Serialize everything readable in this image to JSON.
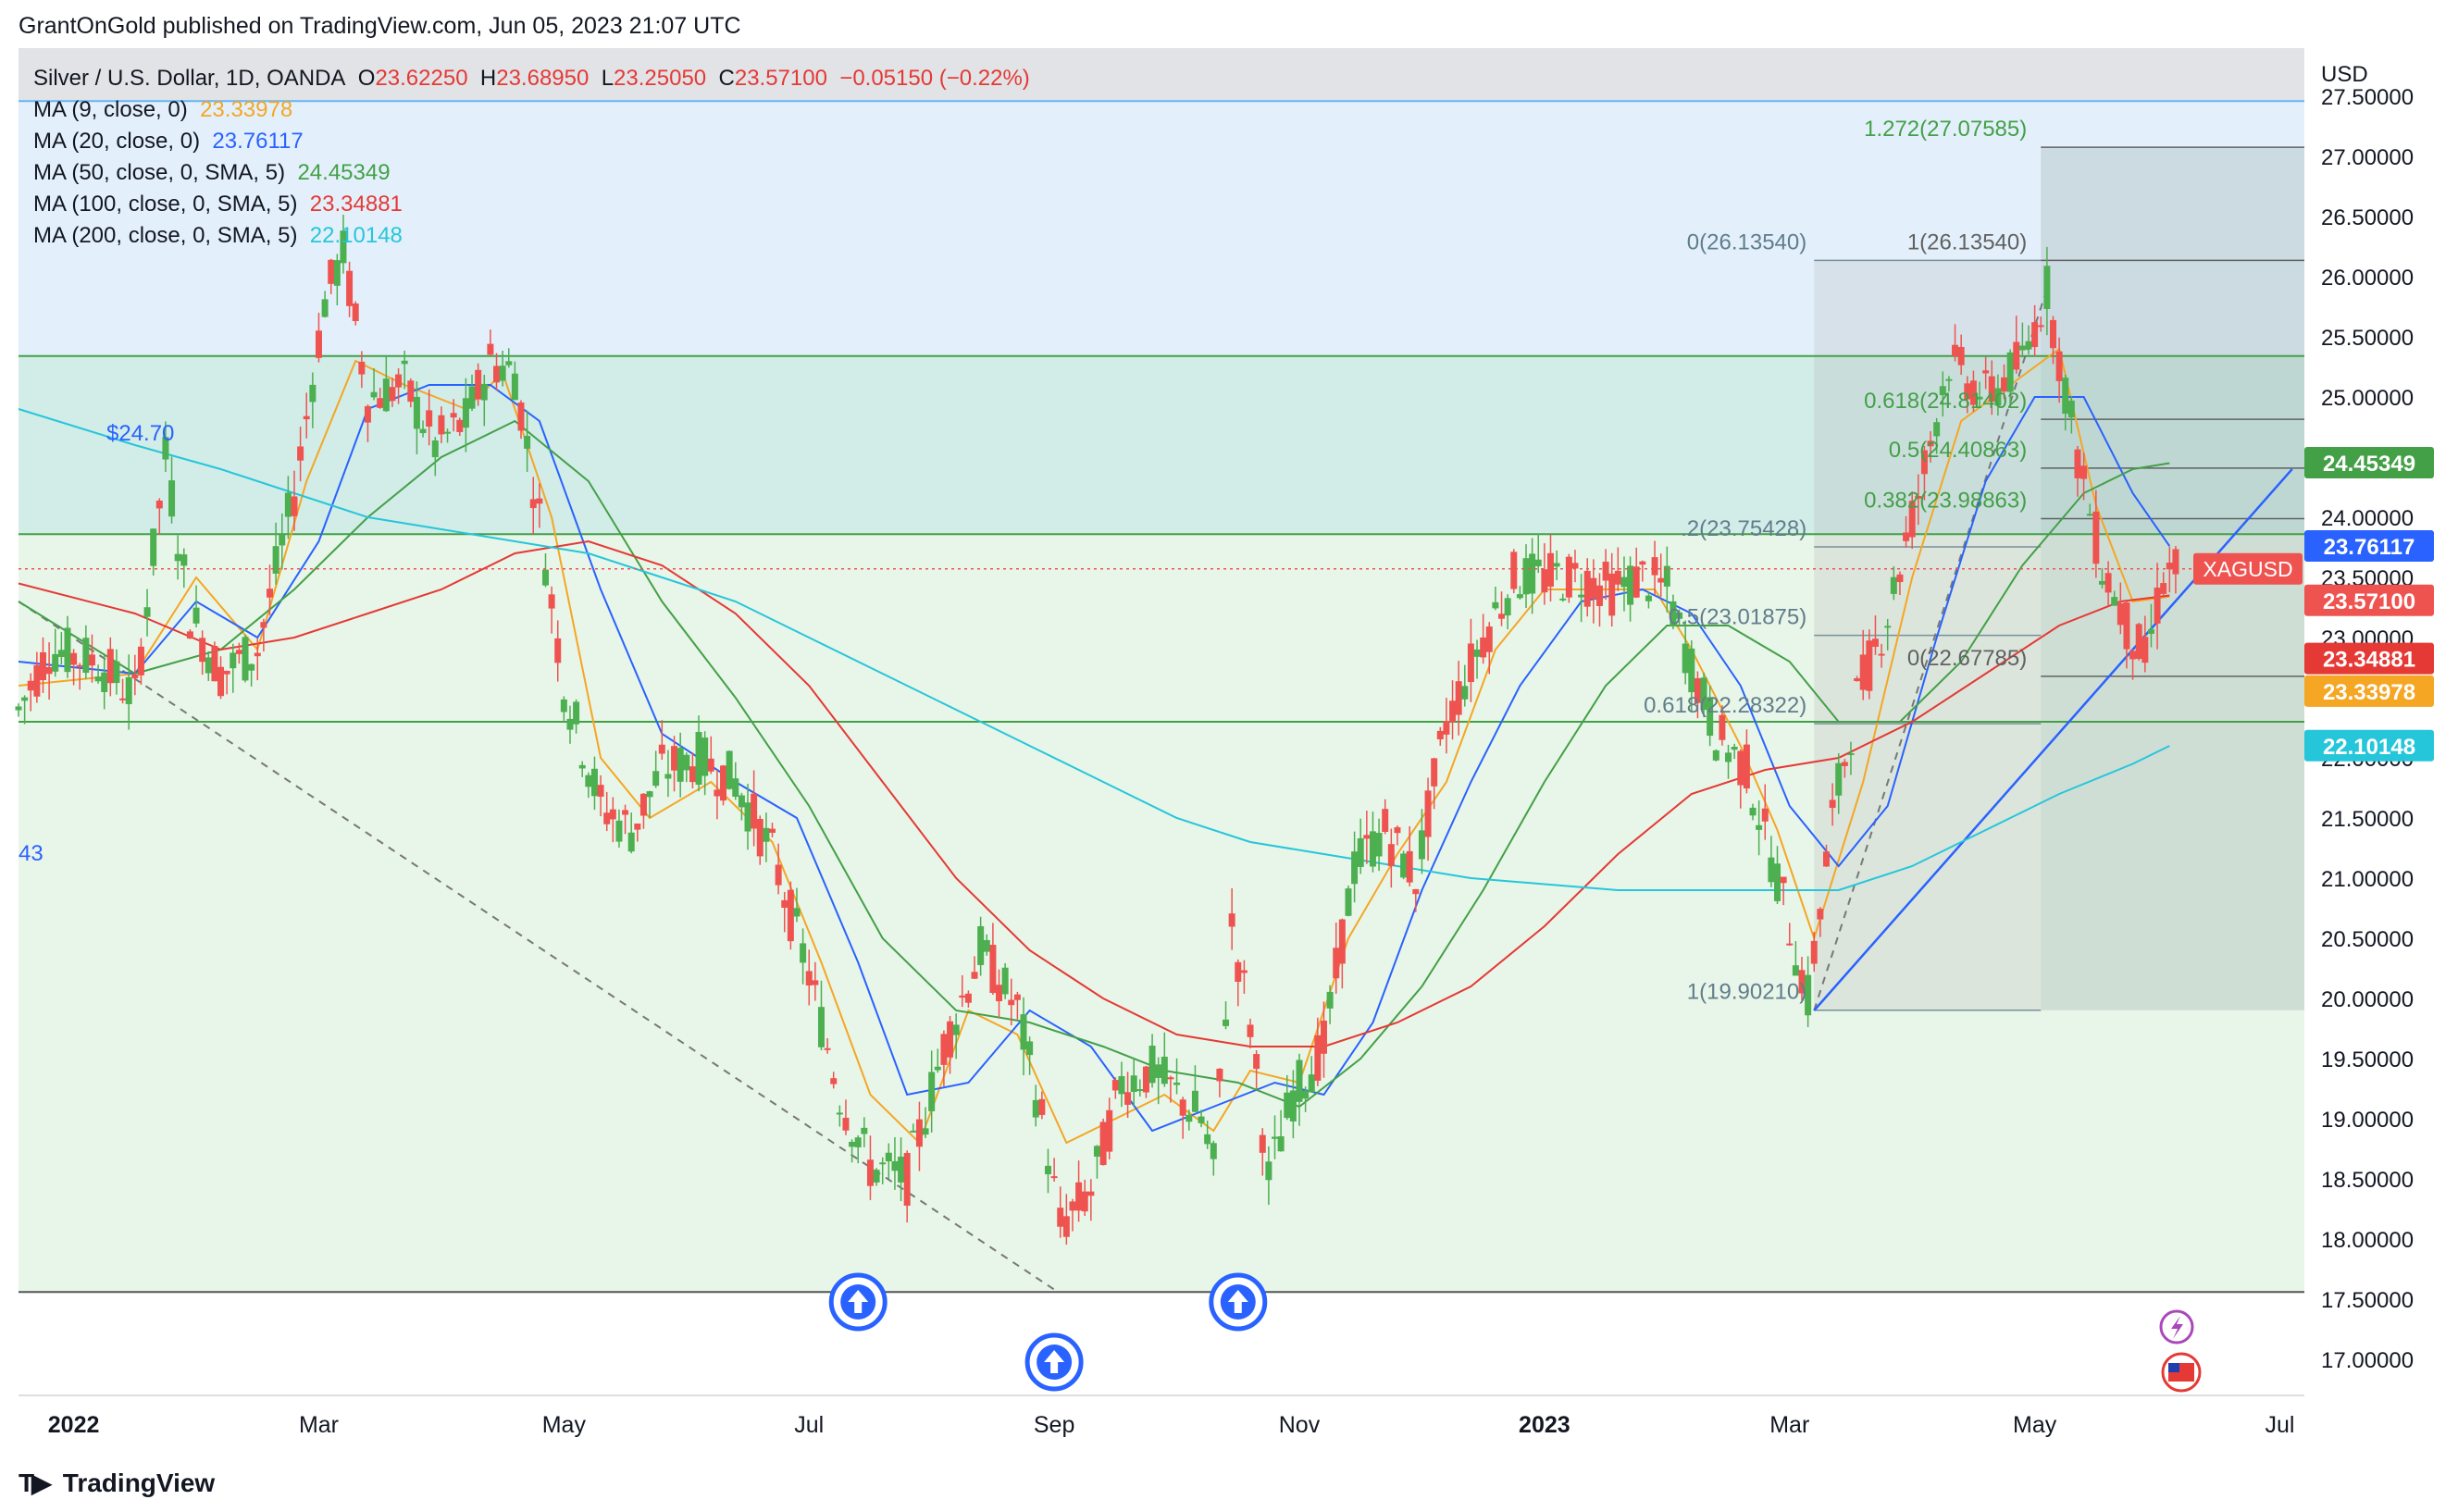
{
  "header": {
    "publisher_line": "GrantOnGold published on TradingView.com, Jun 05, 2023 21:07 UTC"
  },
  "legend": {
    "symbol": "Silver / U.S. Dollar, 1D, OANDA",
    "ohlc": {
      "o_label": "O",
      "o": "23.62250",
      "h_label": "H",
      "h": "23.68950",
      "l_label": "L",
      "l": "23.25050",
      "c_label": "C",
      "c": "23.57100",
      "change": "−0.05150 (−0.22%)"
    },
    "ma": [
      {
        "label": "MA (9, close, 0)",
        "value": "23.33978",
        "color": "#f5a623"
      },
      {
        "label": "MA (20, close, 0)",
        "value": "23.76117",
        "color": "#2962ff"
      },
      {
        "label": "MA (50, close, 0, SMA, 5)",
        "value": "24.45349",
        "color": "#43a047"
      },
      {
        "label": "MA (100, close, 0, SMA, 5)",
        "value": "23.34881",
        "color": "#e53935"
      },
      {
        "label": "MA (200, close, 0, SMA, 5)",
        "value": "22.10148",
        "color": "#26c6da"
      }
    ]
  },
  "footer": {
    "brand": "TradingView"
  },
  "colors": {
    "up": "#26a69a",
    "down": "#ef5350",
    "candle_up": "#4caf50",
    "bg_blue": "#e3f0fb",
    "bg_green": "#e8f5e9",
    "bg_teal": "#d2ece8",
    "bg_grey": "#e1e3e6",
    "grid_text": "#131722"
  },
  "chart_data": {
    "type": "line",
    "title": "Silver / U.S. Dollar, 1D, OANDA",
    "currency_label": "USD",
    "y_ticks": [
      "27.50000",
      "27.00000",
      "26.50000",
      "26.00000",
      "25.50000",
      "25.00000",
      "24.50000",
      "24.00000",
      "23.50000",
      "23.00000",
      "22.50000",
      "22.00000",
      "21.50000",
      "21.00000",
      "20.50000",
      "20.00000",
      "19.50000",
      "19.00000",
      "18.50000",
      "18.00000",
      "17.50000",
      "17.00000"
    ],
    "ylim": [
      16.7,
      27.9
    ],
    "x_ticks": [
      {
        "label": "2022",
        "t": 0.0,
        "bold": true
      },
      {
        "label": "Mar",
        "t": 2.0
      },
      {
        "label": "May",
        "t": 4.0
      },
      {
        "label": "Jul",
        "t": 6.0
      },
      {
        "label": "Sep",
        "t": 8.0
      },
      {
        "label": "Nov",
        "t": 10.0
      },
      {
        "label": "2023",
        "t": 12.0,
        "bold": true
      },
      {
        "label": "Mar",
        "t": 14.0
      },
      {
        "label": "May",
        "t": 16.0
      },
      {
        "label": "Jul",
        "t": 18.0
      }
    ],
    "xlim": [
      -0.45,
      18.2
    ],
    "price_path": [
      [
        -0.45,
        22.4
      ],
      [
        -0.2,
        22.9
      ],
      [
        0.2,
        22.8
      ],
      [
        0.5,
        22.5
      ],
      [
        0.75,
        24.5
      ],
      [
        0.95,
        23.2
      ],
      [
        1.2,
        22.7
      ],
      [
        1.5,
        22.9
      ],
      [
        1.8,
        24.2
      ],
      [
        2.05,
        25.8
      ],
      [
        2.2,
        26.2
      ],
      [
        2.4,
        25.0
      ],
      [
        2.7,
        25.1
      ],
      [
        2.95,
        24.6
      ],
      [
        3.2,
        24.8
      ],
      [
        3.4,
        25.3
      ],
      [
        3.6,
        25.2
      ],
      [
        3.8,
        24.0
      ],
      [
        4.0,
        22.6
      ],
      [
        4.3,
        21.6
      ],
      [
        4.55,
        21.4
      ],
      [
        4.8,
        21.9
      ],
      [
        5.1,
        22.0
      ],
      [
        5.4,
        21.8
      ],
      [
        5.7,
        21.2
      ],
      [
        6.0,
        20.2
      ],
      [
        6.25,
        19.2
      ],
      [
        6.5,
        18.6
      ],
      [
        6.8,
        18.5
      ],
      [
        7.1,
        19.6
      ],
      [
        7.4,
        20.4
      ],
      [
        7.7,
        19.9
      ],
      [
        7.9,
        19.0
      ],
      [
        8.05,
        18.1
      ],
      [
        8.3,
        18.4
      ],
      [
        8.55,
        19.3
      ],
      [
        8.8,
        19.4
      ],
      [
        9.0,
        19.2
      ],
      [
        9.2,
        19.0
      ],
      [
        9.3,
        18.6
      ],
      [
        9.45,
        20.6
      ],
      [
        9.6,
        19.8
      ],
      [
        9.75,
        18.5
      ],
      [
        9.95,
        19.2
      ],
      [
        10.2,
        19.6
      ],
      [
        10.45,
        21.1
      ],
      [
        10.7,
        21.4
      ],
      [
        10.95,
        21.0
      ],
      [
        11.2,
        22.3
      ],
      [
        11.5,
        23.0
      ],
      [
        11.75,
        23.5
      ],
      [
        12.0,
        23.5
      ],
      [
        12.3,
        23.5
      ],
      [
        12.55,
        23.4
      ],
      [
        12.8,
        23.5
      ],
      [
        13.0,
        23.4
      ],
      [
        13.15,
        22.9
      ],
      [
        13.4,
        22.2
      ],
      [
        13.65,
        21.9
      ],
      [
        13.9,
        21.0
      ],
      [
        14.15,
        20.0
      ],
      [
        14.35,
        21.5
      ],
      [
        14.55,
        22.5
      ],
      [
        14.8,
        23.2
      ],
      [
        15.05,
        24.2
      ],
      [
        15.3,
        25.3
      ],
      [
        15.6,
        25.0
      ],
      [
        15.9,
        25.3
      ],
      [
        16.1,
        25.9
      ],
      [
        16.35,
        24.5
      ],
      [
        16.55,
        23.6
      ],
      [
        16.75,
        23.1
      ],
      [
        16.9,
        22.8
      ],
      [
        17.05,
        23.5
      ],
      [
        17.2,
        23.6
      ]
    ],
    "ma_paths": [
      {
        "name": "MA 9",
        "color": "#f5a623",
        "points": [
          [
            -0.45,
            22.6
          ],
          [
            0.5,
            22.7
          ],
          [
            1.0,
            23.5
          ],
          [
            1.5,
            22.9
          ],
          [
            1.9,
            24.3
          ],
          [
            2.3,
            25.3
          ],
          [
            2.7,
            25.1
          ],
          [
            3.2,
            24.9
          ],
          [
            3.5,
            25.2
          ],
          [
            3.9,
            24.0
          ],
          [
            4.3,
            22.0
          ],
          [
            4.7,
            21.5
          ],
          [
            5.2,
            21.8
          ],
          [
            5.7,
            21.3
          ],
          [
            6.1,
            20.3
          ],
          [
            6.5,
            19.2
          ],
          [
            6.9,
            18.8
          ],
          [
            7.3,
            19.9
          ],
          [
            7.7,
            19.7
          ],
          [
            8.1,
            18.8
          ],
          [
            8.5,
            19.0
          ],
          [
            8.9,
            19.2
          ],
          [
            9.3,
            18.9
          ],
          [
            9.6,
            19.4
          ],
          [
            10.0,
            19.3
          ],
          [
            10.4,
            20.5
          ],
          [
            10.8,
            21.2
          ],
          [
            11.2,
            21.8
          ],
          [
            11.6,
            22.9
          ],
          [
            12.0,
            23.4
          ],
          [
            12.5,
            23.4
          ],
          [
            12.9,
            23.4
          ],
          [
            13.2,
            22.9
          ],
          [
            13.6,
            22.1
          ],
          [
            13.9,
            21.4
          ],
          [
            14.2,
            20.5
          ],
          [
            14.6,
            21.8
          ],
          [
            15.0,
            23.5
          ],
          [
            15.4,
            24.8
          ],
          [
            15.8,
            25.1
          ],
          [
            16.2,
            25.4
          ],
          [
            16.5,
            24.1
          ],
          [
            16.8,
            23.3
          ],
          [
            17.1,
            23.34
          ]
        ]
      },
      {
        "name": "MA 20",
        "color": "#2962ff",
        "points": [
          [
            -0.45,
            22.8
          ],
          [
            0.5,
            22.7
          ],
          [
            1.0,
            23.3
          ],
          [
            1.5,
            23.0
          ],
          [
            2.0,
            23.8
          ],
          [
            2.4,
            24.9
          ],
          [
            2.9,
            25.1
          ],
          [
            3.4,
            25.1
          ],
          [
            3.8,
            24.8
          ],
          [
            4.3,
            23.4
          ],
          [
            4.8,
            22.2
          ],
          [
            5.4,
            21.8
          ],
          [
            5.9,
            21.5
          ],
          [
            6.4,
            20.3
          ],
          [
            6.8,
            19.2
          ],
          [
            7.3,
            19.3
          ],
          [
            7.8,
            19.9
          ],
          [
            8.3,
            19.6
          ],
          [
            8.8,
            18.9
          ],
          [
            9.3,
            19.1
          ],
          [
            9.8,
            19.3
          ],
          [
            10.2,
            19.2
          ],
          [
            10.6,
            19.8
          ],
          [
            11.0,
            20.9
          ],
          [
            11.4,
            21.8
          ],
          [
            11.8,
            22.6
          ],
          [
            12.3,
            23.3
          ],
          [
            12.8,
            23.4
          ],
          [
            13.2,
            23.2
          ],
          [
            13.6,
            22.6
          ],
          [
            14.0,
            21.6
          ],
          [
            14.4,
            21.1
          ],
          [
            14.8,
            21.6
          ],
          [
            15.2,
            23.0
          ],
          [
            15.6,
            24.3
          ],
          [
            16.0,
            25.0
          ],
          [
            16.4,
            25.0
          ],
          [
            16.8,
            24.2
          ],
          [
            17.1,
            23.76
          ]
        ]
      },
      {
        "name": "MA 50",
        "color": "#43a047",
        "points": [
          [
            -0.45,
            23.3
          ],
          [
            0.5,
            22.7
          ],
          [
            1.2,
            22.9
          ],
          [
            1.8,
            23.4
          ],
          [
            2.4,
            24.0
          ],
          [
            3.0,
            24.5
          ],
          [
            3.6,
            24.8
          ],
          [
            4.2,
            24.3
          ],
          [
            4.8,
            23.3
          ],
          [
            5.4,
            22.5
          ],
          [
            6.0,
            21.6
          ],
          [
            6.6,
            20.5
          ],
          [
            7.2,
            19.9
          ],
          [
            7.8,
            19.8
          ],
          [
            8.4,
            19.6
          ],
          [
            8.9,
            19.4
          ],
          [
            9.5,
            19.3
          ],
          [
            10.0,
            19.1
          ],
          [
            10.5,
            19.5
          ],
          [
            11.0,
            20.1
          ],
          [
            11.5,
            20.9
          ],
          [
            12.0,
            21.8
          ],
          [
            12.5,
            22.6
          ],
          [
            13.0,
            23.1
          ],
          [
            13.5,
            23.1
          ],
          [
            14.0,
            22.8
          ],
          [
            14.4,
            22.3
          ],
          [
            14.9,
            22.3
          ],
          [
            15.4,
            22.8
          ],
          [
            15.9,
            23.6
          ],
          [
            16.4,
            24.2
          ],
          [
            16.8,
            24.4
          ],
          [
            17.1,
            24.45
          ]
        ]
      },
      {
        "name": "MA 100",
        "color": "#e53935",
        "points": [
          [
            -0.45,
            23.45
          ],
          [
            0.5,
            23.2
          ],
          [
            1.2,
            22.9
          ],
          [
            1.8,
            23.0
          ],
          [
            2.4,
            23.2
          ],
          [
            3.0,
            23.4
          ],
          [
            3.6,
            23.7
          ],
          [
            4.2,
            23.8
          ],
          [
            4.8,
            23.6
          ],
          [
            5.4,
            23.2
          ],
          [
            6.0,
            22.6
          ],
          [
            6.6,
            21.8
          ],
          [
            7.2,
            21.0
          ],
          [
            7.8,
            20.4
          ],
          [
            8.4,
            20.0
          ],
          [
            9.0,
            19.7
          ],
          [
            9.6,
            19.6
          ],
          [
            10.2,
            19.6
          ],
          [
            10.8,
            19.8
          ],
          [
            11.4,
            20.1
          ],
          [
            12.0,
            20.6
          ],
          [
            12.6,
            21.2
          ],
          [
            13.2,
            21.7
          ],
          [
            13.8,
            21.9
          ],
          [
            14.4,
            22.0
          ],
          [
            15.0,
            22.3
          ],
          [
            15.6,
            22.7
          ],
          [
            16.2,
            23.1
          ],
          [
            16.7,
            23.3
          ],
          [
            17.1,
            23.35
          ]
        ]
      },
      {
        "name": "MA 200",
        "color": "#26c6da",
        "points": [
          [
            -0.45,
            24.9
          ],
          [
            0.5,
            24.6
          ],
          [
            1.2,
            24.4
          ],
          [
            1.8,
            24.2
          ],
          [
            2.4,
            24.0
          ],
          [
            3.0,
            23.9
          ],
          [
            3.6,
            23.8
          ],
          [
            4.2,
            23.7
          ],
          [
            4.8,
            23.5
          ],
          [
            5.4,
            23.3
          ],
          [
            6.0,
            23.0
          ],
          [
            6.6,
            22.7
          ],
          [
            7.2,
            22.4
          ],
          [
            7.8,
            22.1
          ],
          [
            8.4,
            21.8
          ],
          [
            9.0,
            21.5
          ],
          [
            9.6,
            21.3
          ],
          [
            10.2,
            21.2
          ],
          [
            10.8,
            21.1
          ],
          [
            11.4,
            21.0
          ],
          [
            12.0,
            20.95
          ],
          [
            12.6,
            20.9
          ],
          [
            13.2,
            20.9
          ],
          [
            13.8,
            20.9
          ],
          [
            14.4,
            20.9
          ],
          [
            15.0,
            21.1
          ],
          [
            15.6,
            21.4
          ],
          [
            16.2,
            21.7
          ],
          [
            16.8,
            21.95
          ],
          [
            17.1,
            22.1
          ]
        ]
      }
    ],
    "price_line": {
      "value": 23.571,
      "label": "XAGUSD"
    },
    "price_labels": [
      {
        "value": "24.45349",
        "y": 24.45349,
        "color": "#43a047"
      },
      {
        "value": "23.76117",
        "y": 23.76117,
        "color": "#2962ff"
      },
      {
        "value": "23.57100",
        "y": 23.571,
        "color": "#ef5350"
      },
      {
        "value": "23.34881",
        "y": 23.34881,
        "color": "#e53935"
      },
      {
        "value": "23.33978",
        "y": 23.33978,
        "color": "#f5a623"
      },
      {
        "value": "22.10148",
        "y": 22.10148,
        "color": "#26c6da"
      }
    ],
    "annotations": {
      "left_label_top": "$24.70",
      "left_label_mid": "43",
      "fib_left": [
        {
          "text": "0(26.13540)",
          "y": 26.1354
        },
        {
          "text": ".2(23.75428)",
          "y": 23.75428
        },
        {
          "text": "0.5(23.01875)",
          "y": 23.01875
        },
        {
          "text": "0.618(22.28322)",
          "y": 22.28322
        },
        {
          "text": "1(19.90210)",
          "y": 19.9021
        }
      ],
      "fib_right": [
        {
          "text": "1.272(27.07585)",
          "y": 27.07585
        },
        {
          "text": "1(26.13540)",
          "y": 26.1354
        },
        {
          "text": "0.618(24.81402)",
          "y": 24.81402
        },
        {
          "text": "0.5(24.40863)",
          "y": 24.40863
        },
        {
          "text": "0.382(23.98863)",
          "y": 23.98863
        },
        {
          "text": "0(22.67785)",
          "y": 22.67785
        }
      ],
      "h_levels": [
        27.46,
        25.34,
        23.86,
        22.3,
        17.56
      ],
      "trend_low": {
        "t": -0.45,
        "y": 23.3
      },
      "trend_high": {
        "t": 8.0,
        "y": 17.58
      },
      "support_line": [
        [
          14.2,
          19.9
        ],
        [
          18.1,
          24.4
        ]
      ],
      "event_markers": [
        {
          "t": 6.4,
          "row": 1
        },
        {
          "t": 8.0,
          "row": 2
        },
        {
          "t": 9.5,
          "row": 1
        }
      ]
    }
  }
}
